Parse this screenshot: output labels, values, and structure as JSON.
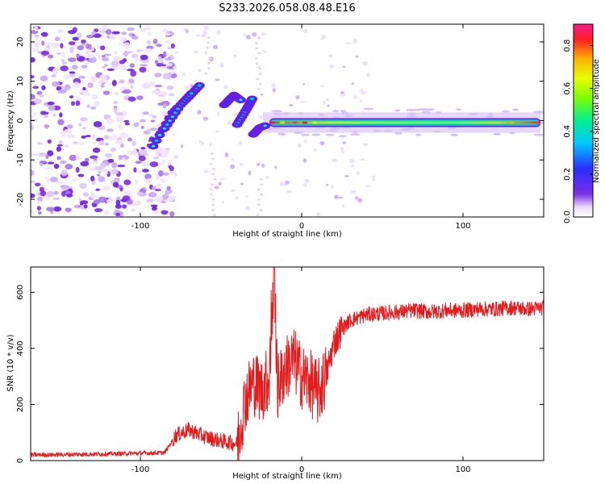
{
  "title": "S233.2026.058.08.48.E16",
  "chart_data": [
    {
      "type": "heatmap",
      "name": "spectrogram",
      "xlabel": "Height of straight line (km)",
      "ylabel": "Frequency (Hz)",
      "xlim": [
        -168,
        150
      ],
      "ylim": [
        -24.5,
        24.5
      ],
      "xticks": [
        -100,
        0,
        100
      ],
      "yticks": [
        -20,
        -10,
        0,
        10,
        20
      ],
      "colorbar": {
        "label": "Normalized spectral amplitude",
        "range": [
          0,
          0.9
        ],
        "ticks": [
          0.0,
          0.2,
          0.4,
          0.6,
          0.8
        ]
      },
      "features": [
        {
          "description": "carrier line",
          "x_range": [
            -20,
            148
          ],
          "frequency": -0.5,
          "peak_amplitude": 0.9
        },
        {
          "description": "streaks",
          "x_range": [
            -92,
            -22
          ],
          "frequency_range": [
            -7,
            10
          ]
        },
        {
          "description": "noise floor",
          "x_range": [
            -168,
            -85
          ],
          "frequency_range": [
            -24,
            24
          ]
        }
      ]
    },
    {
      "type": "line",
      "name": "snr",
      "xlabel": "Height of straight line (km)",
      "ylabel": "SNR (10 * v/v)",
      "xlim": [
        -168,
        150
      ],
      "ylim": [
        0,
        690
      ],
      "xticks": [
        -100,
        0,
        100
      ],
      "yticks": [
        0,
        200,
        400,
        600
      ],
      "color": "#e41a1c",
      "series": [
        {
          "name": "SNR",
          "x": [
            -168,
            -140,
            -110,
            -85,
            -78,
            -70,
            -60,
            -50,
            -40,
            -35,
            -30,
            -25,
            -20,
            -17,
            -15,
            -10,
            -5,
            0,
            5,
            10,
            15,
            20,
            25,
            30,
            40,
            50,
            60,
            70,
            80,
            90,
            100,
            110,
            120,
            130,
            140,
            150
          ],
          "values": [
            20,
            22,
            25,
            28,
            90,
            110,
            85,
            70,
            60,
            220,
            280,
            250,
            300,
            640,
            260,
            330,
            360,
            300,
            280,
            240,
            300,
            420,
            470,
            500,
            520,
            525,
            530,
            535,
            530,
            535,
            535,
            540,
            540,
            545,
            540,
            545
          ]
        }
      ]
    }
  ]
}
